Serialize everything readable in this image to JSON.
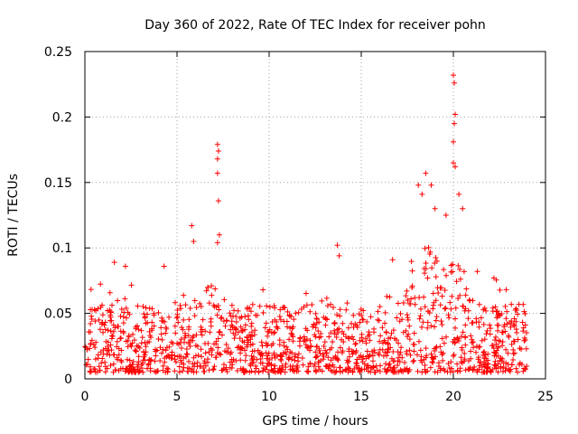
{
  "chart_data": {
    "type": "scatter",
    "title": "Day 360 of 2022, Rate Of TEC Index for receiver pohn",
    "xlabel": "GPS time / hours",
    "ylabel": "ROTI / TECUs",
    "xlim": [
      0,
      25
    ],
    "ylim": [
      0,
      0.25
    ],
    "xticks": [
      0,
      5,
      10,
      15,
      20,
      25
    ],
    "xtick_labels": [
      "0",
      "5",
      "10",
      "15",
      "20",
      "25"
    ],
    "yticks": [
      0,
      0.05,
      0.1,
      0.15,
      0.2,
      0.25
    ],
    "ytick_labels": [
      "0",
      "0.05",
      "0.1",
      "0.15",
      "0.2",
      "0.25"
    ],
    "grid": true,
    "marker": "+",
    "color": "#ff0000",
    "x_data_range": [
      0,
      24
    ],
    "baseline": 0.022,
    "spread": 0.03,
    "peaks": [
      {
        "x": 1.6,
        "y": 0.089
      },
      {
        "x": 2.2,
        "y": 0.086
      },
      {
        "x": 4.3,
        "y": 0.086
      },
      {
        "x": 5.8,
        "y": 0.117
      },
      {
        "x": 5.9,
        "y": 0.105
      },
      {
        "x": 7.2,
        "y": 0.179
      },
      {
        "x": 7.25,
        "y": 0.174
      },
      {
        "x": 7.2,
        "y": 0.168
      },
      {
        "x": 7.2,
        "y": 0.157
      },
      {
        "x": 7.25,
        "y": 0.136
      },
      {
        "x": 7.3,
        "y": 0.11
      },
      {
        "x": 7.2,
        "y": 0.104
      },
      {
        "x": 13.7,
        "y": 0.102
      },
      {
        "x": 13.8,
        "y": 0.094
      },
      {
        "x": 16.7,
        "y": 0.091
      },
      {
        "x": 18.1,
        "y": 0.148
      },
      {
        "x": 18.3,
        "y": 0.141
      },
      {
        "x": 18.5,
        "y": 0.157
      },
      {
        "x": 18.8,
        "y": 0.148
      },
      {
        "x": 19.0,
        "y": 0.13
      },
      {
        "x": 19.6,
        "y": 0.125
      },
      {
        "x": 20.0,
        "y": 0.232
      },
      {
        "x": 20.05,
        "y": 0.226
      },
      {
        "x": 20.1,
        "y": 0.202
      },
      {
        "x": 20.05,
        "y": 0.195
      },
      {
        "x": 20.0,
        "y": 0.181
      },
      {
        "x": 20.0,
        "y": 0.165
      },
      {
        "x": 20.1,
        "y": 0.162
      },
      {
        "x": 20.3,
        "y": 0.141
      },
      {
        "x": 20.5,
        "y": 0.13
      },
      {
        "x": 21.3,
        "y": 0.082
      },
      {
        "x": 22.2,
        "y": 0.077
      }
    ],
    "bumps": [
      {
        "center": 7.0,
        "width": 0.6,
        "height": 0.02
      },
      {
        "center": 18.5,
        "width": 0.9,
        "height": 0.05
      },
      {
        "center": 20.2,
        "width": 0.6,
        "height": 0.04
      }
    ]
  }
}
